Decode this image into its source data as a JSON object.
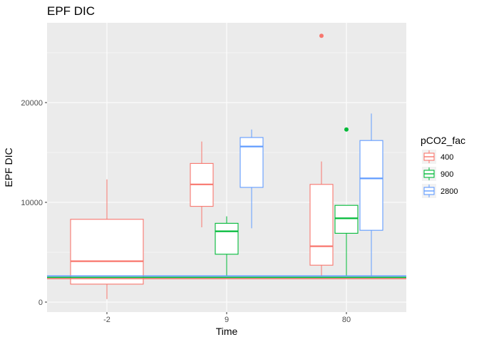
{
  "chart_data": {
    "type": "box",
    "title": "EPF DIC",
    "xlabel": "Time",
    "ylabel": "EPF DIC",
    "categories": [
      "-2",
      "9",
      "80"
    ],
    "ylim": [
      -1000,
      28000
    ],
    "yticks": [
      0,
      10000,
      20000
    ],
    "ytick_labels": [
      "0",
      "10000",
      "20000"
    ],
    "grid": true,
    "legend": {
      "title": "pCO2_fac",
      "placement": "right",
      "entries": [
        "400",
        "900",
        "2800"
      ]
    },
    "series": [
      {
        "name": "400",
        "color": "#F8766D",
        "boxes": [
          {
            "category": "-2",
            "min": 300,
            "q1": 1800,
            "median": 4100,
            "q3": 8300,
            "max": 12300,
            "outliers": []
          },
          {
            "category": "9",
            "min": 7500,
            "q1": 9600,
            "median": 11800,
            "q3": 13900,
            "max": 16100,
            "outliers": []
          },
          {
            "category": "80",
            "min": 2600,
            "q1": 3700,
            "median": 5600,
            "q3": 11800,
            "max": 14100,
            "outliers": [
              26700
            ]
          }
        ]
      },
      {
        "name": "900",
        "color": "#00BA38",
        "boxes": [
          {
            "category": "9",
            "min": 2600,
            "q1": 4800,
            "median": 7100,
            "q3": 7900,
            "max": 8600,
            "outliers": []
          },
          {
            "category": "80",
            "min": 2600,
            "q1": 6900,
            "median": 8400,
            "q3": 9700,
            "max": 9700,
            "outliers": [
              17300
            ]
          }
        ]
      },
      {
        "name": "2800",
        "color": "#619CFF",
        "boxes": [
          {
            "category": "9",
            "min": 7400,
            "q1": 11500,
            "median": 15600,
            "q3": 16500,
            "max": 17300,
            "outliers": []
          },
          {
            "category": "80",
            "min": 2600,
            "q1": 7200,
            "median": 12400,
            "q3": 16200,
            "max": 18900,
            "outliers": []
          }
        ]
      }
    ],
    "reference_lines": [
      {
        "y": 2350,
        "color": "#F8766D"
      },
      {
        "y": 2480,
        "color": "#00BA38"
      },
      {
        "y": 2620,
        "color": "#619CFF"
      }
    ]
  }
}
